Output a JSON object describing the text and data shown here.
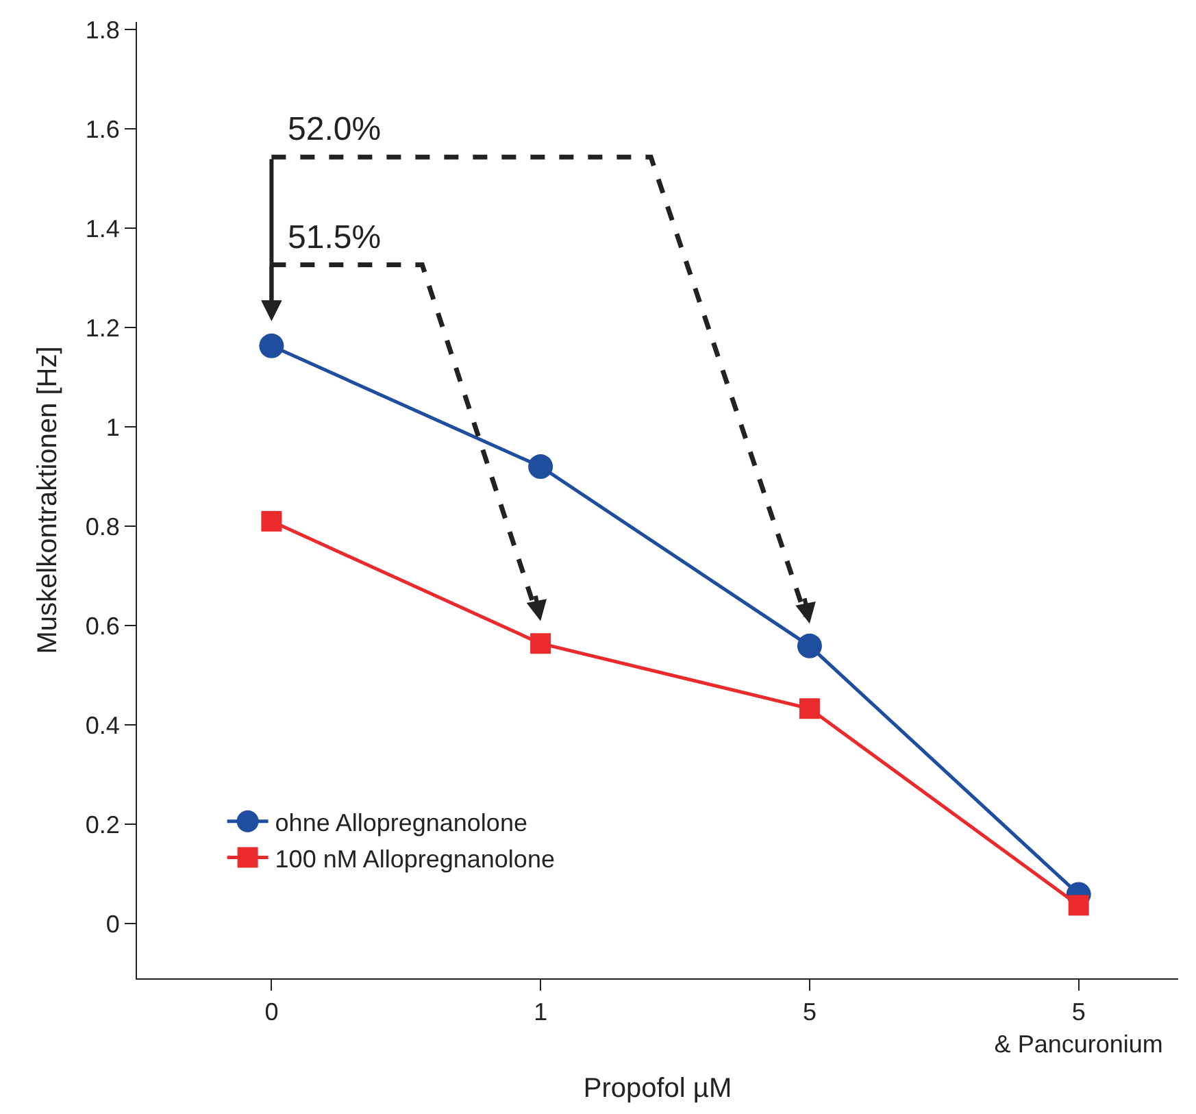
{
  "chart_data": {
    "type": "line",
    "xlabel": "Propofol µM",
    "ylabel": "Muskelkontraktionen [Hz]",
    "categories": [
      "0",
      "1",
      "5",
      "5\n& Pancuronium"
    ],
    "series": [
      {
        "name": "ohne Allopregnanolone",
        "color": "#1f4e9f",
        "marker": "circle",
        "values": [
          1.163,
          0.92,
          0.559,
          0.059
        ]
      },
      {
        "name": "100 nM Allopregnanolone",
        "color": "#ea2a2c",
        "marker": "square",
        "values": [
          0.81,
          0.564,
          0.433,
          0.037
        ]
      }
    ],
    "ylim": [
      -0.11,
      1.815
    ],
    "yticks": [
      0,
      0.2,
      0.4,
      0.6,
      0.8,
      1,
      1.2,
      1.4,
      1.6,
      1.8
    ],
    "annotations": [
      "52.0%",
      "51.5%"
    ],
    "legend": "bottom left",
    "line_style": "solid"
  }
}
